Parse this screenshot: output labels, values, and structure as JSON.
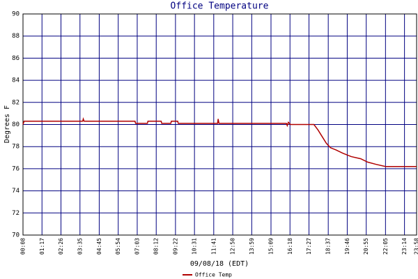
{
  "chart_data": {
    "type": "line",
    "title": "Office Temperature",
    "xlabel": "09/08/18 (EDT)",
    "ylabel": "Degrees F",
    "x": [
      "00:08",
      "00:12",
      "03:45",
      "03:47",
      "03:50",
      "06:55",
      "06:57",
      "07:40",
      "07:42",
      "08:30",
      "08:32",
      "09:05",
      "09:07",
      "09:30",
      "09:32",
      "11:55",
      "11:57",
      "12:00",
      "16:05",
      "16:08",
      "16:12",
      "16:20",
      "17:45",
      "18:00",
      "18:15",
      "18:30",
      "18:45",
      "19:05",
      "19:30",
      "20:00",
      "20:35",
      "21:00",
      "21:30",
      "22:05",
      "23:58"
    ],
    "series": [
      {
        "name": "Office Temp",
        "color": "#b00000",
        "values": [
          80.0,
          80.3,
          80.3,
          80.5,
          80.3,
          80.3,
          80.1,
          80.1,
          80.3,
          80.3,
          80.1,
          80.1,
          80.3,
          80.3,
          80.1,
          80.1,
          80.5,
          80.1,
          80.1,
          79.9,
          80.2,
          80.0,
          80.0,
          79.5,
          78.9,
          78.3,
          77.9,
          77.7,
          77.4,
          77.1,
          76.9,
          76.6,
          76.4,
          76.2,
          76.2
        ]
      }
    ],
    "xlim": [
      "00:08",
      "23:58"
    ],
    "xticks": [
      "00:08",
      "01:17",
      "02:26",
      "03:35",
      "04:45",
      "05:54",
      "07:03",
      "08:12",
      "09:22",
      "10:31",
      "11:41",
      "12:50",
      "13:59",
      "15:09",
      "16:18",
      "17:27",
      "18:37",
      "19:46",
      "20:55",
      "22:05",
      "23:14",
      "23:58"
    ],
    "ylim": [
      70,
      90
    ],
    "yticks": [
      70,
      72,
      74,
      76,
      78,
      80,
      82,
      84,
      86,
      88,
      90
    ],
    "grid": true,
    "grid_color": "#000080",
    "legend": "bottom"
  }
}
